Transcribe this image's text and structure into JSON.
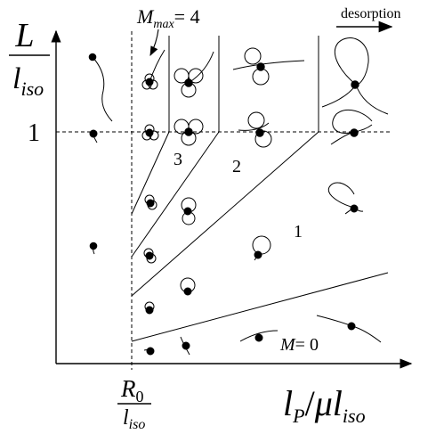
{
  "y_axis": {
    "label_num": "L",
    "label_den_base": "l",
    "label_den_sub": "iso",
    "tick_label": "1"
  },
  "x_axis": {
    "label_l": "l",
    "label_p_sub": "P",
    "label_slash": "/",
    "label_mu": "μ",
    "label_l2": "l",
    "label_iso_sub": "iso",
    "tick_num_base": "R",
    "tick_num_sub": "0",
    "tick_den_base": "l",
    "tick_den_sub": "iso"
  },
  "annotations": {
    "mmax_base": "M",
    "mmax_sub": "max",
    "mmax_eq": "= 4",
    "desorption": "desorption",
    "m0_base": "M",
    "m0_eq": "= 0"
  },
  "regions": {
    "r1": "1",
    "r2": "2",
    "r3": "3"
  }
}
